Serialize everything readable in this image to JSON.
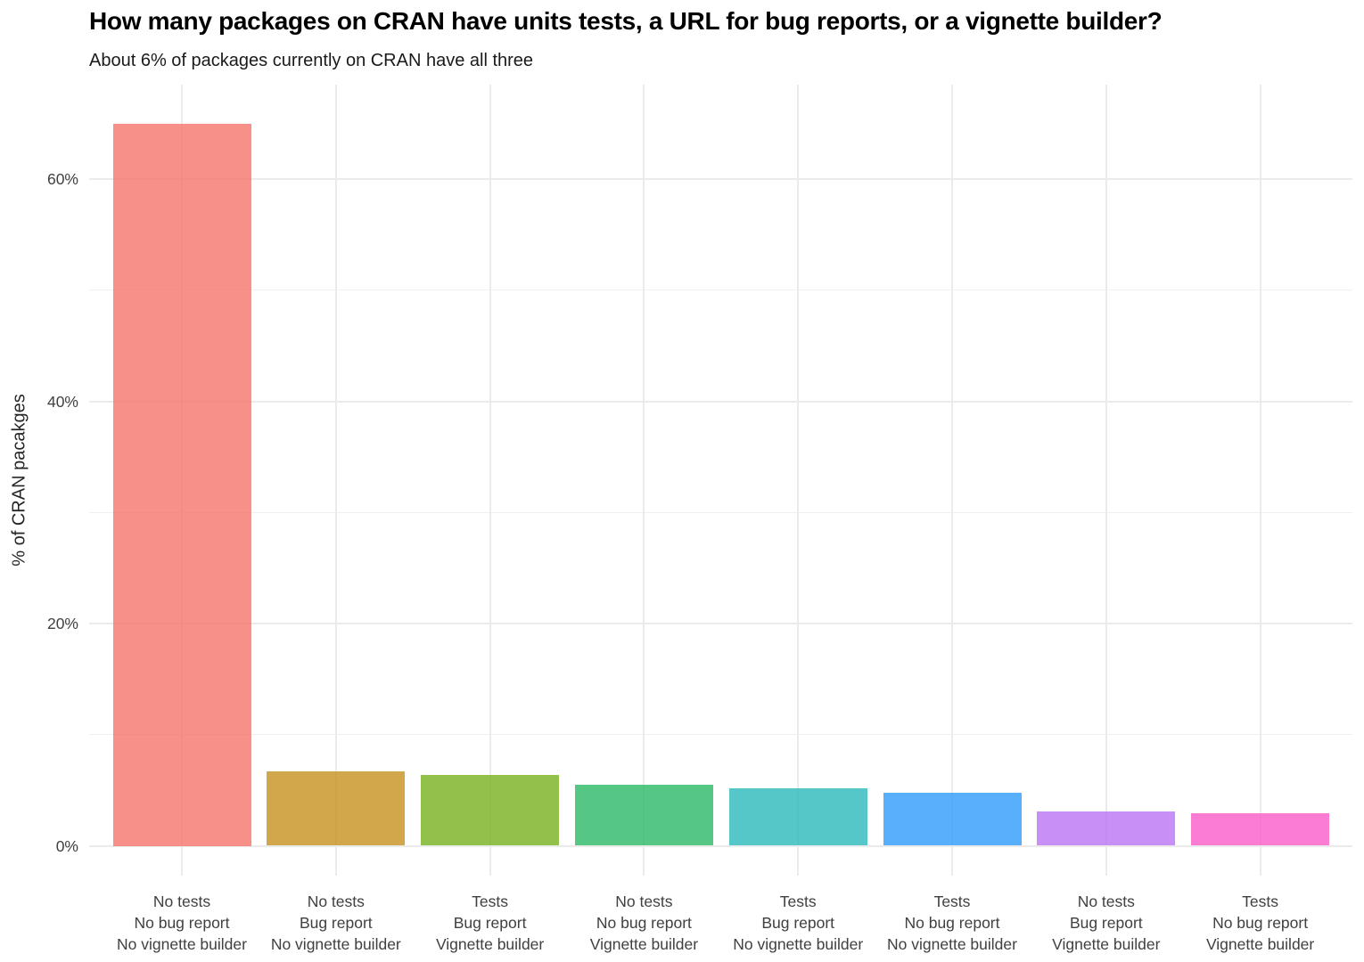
{
  "chart_data": {
    "type": "bar",
    "title": "How many packages on CRAN have units tests, a URL for bug reports, or a vignette builder?",
    "subtitle": "About 6% of packages currently on CRAN have all three",
    "ylabel": "% of CRAN pacakges",
    "xlabel": "",
    "categories": [
      [
        "No tests",
        "No bug report",
        "No vignette builder"
      ],
      [
        "No tests",
        "Bug report",
        "No vignette builder"
      ],
      [
        "Tests",
        "Bug report",
        "Vignette builder"
      ],
      [
        "No tests",
        "No bug report",
        "Vignette builder"
      ],
      [
        "Tests",
        "Bug report",
        "No vignette builder"
      ],
      [
        "Tests",
        "No bug report",
        "No vignette builder"
      ],
      [
        "No tests",
        "Bug report",
        "Vignette builder"
      ],
      [
        "Tests",
        "No bug report",
        "Vignette builder"
      ]
    ],
    "values": [
      65,
      6.7,
      6.4,
      5.5,
      5.2,
      4.8,
      3.1,
      2.9
    ],
    "unit": "%",
    "bar_colors": [
      "#F6746D",
      "#C7901D",
      "#76B21D",
      "#2AB865",
      "#2CB9BC",
      "#2E9CFB",
      "#BA73F5",
      "#F95BC8"
    ],
    "bar_opacity": 0.8,
    "y_ticks": [
      0,
      20,
      40,
      60
    ],
    "y_tick_labels": [
      "0%",
      "20%",
      "40%",
      "60%"
    ],
    "y_minor_ticks": [
      10,
      30,
      50
    ],
    "ylim": [
      0,
      68
    ],
    "grid": "both",
    "grid_color": "#EBEBEB",
    "background": "#FFFFFF",
    "text_color": "#404040",
    "title_color": "#000000",
    "legend": "none"
  }
}
